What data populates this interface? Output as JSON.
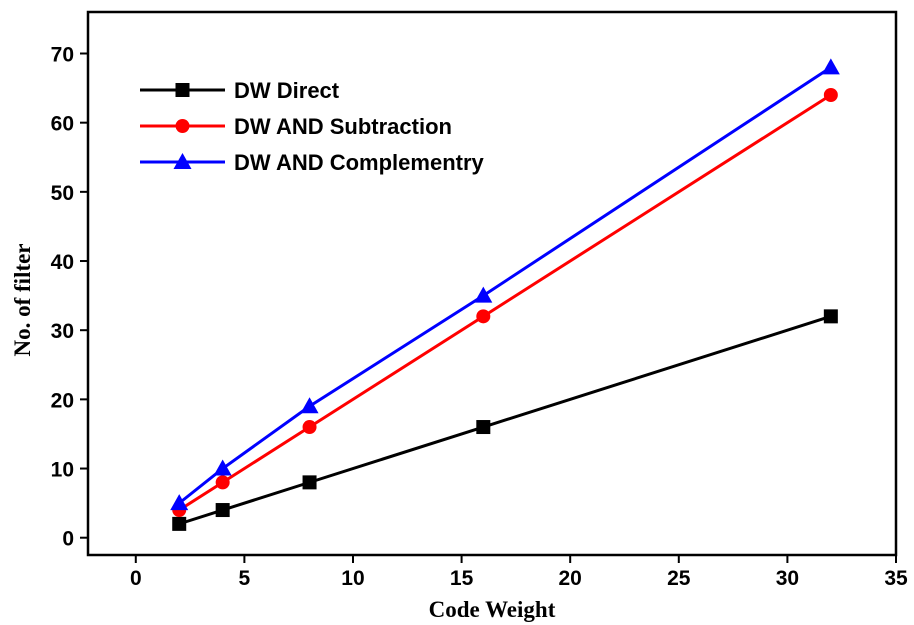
{
  "chart_data": {
    "type": "line",
    "xlabel": "Code Weight",
    "ylabel": "No. of filter",
    "xlim": [
      -2.2,
      35
    ],
    "ylim": [
      -2.5,
      76
    ],
    "xticks": [
      0,
      5,
      10,
      15,
      20,
      25,
      30,
      35
    ],
    "yticks": [
      0,
      10,
      20,
      30,
      40,
      50,
      60,
      70
    ],
    "x": [
      2,
      4,
      8,
      16,
      32
    ],
    "legend_position": "top-left",
    "series": [
      {
        "name": "DW Direct",
        "values": [
          2,
          4,
          8,
          16,
          32
        ],
        "color": "#000000",
        "marker": "square"
      },
      {
        "name": "DW AND Subtraction",
        "values": [
          4,
          8,
          16,
          32,
          64
        ],
        "color": "#ff0000",
        "marker": "circle"
      },
      {
        "name": "DW AND Complementry",
        "values": [
          5,
          10,
          19,
          35,
          68
        ],
        "color": "#0000ff",
        "marker": "triangle"
      }
    ],
    "grid": false
  }
}
